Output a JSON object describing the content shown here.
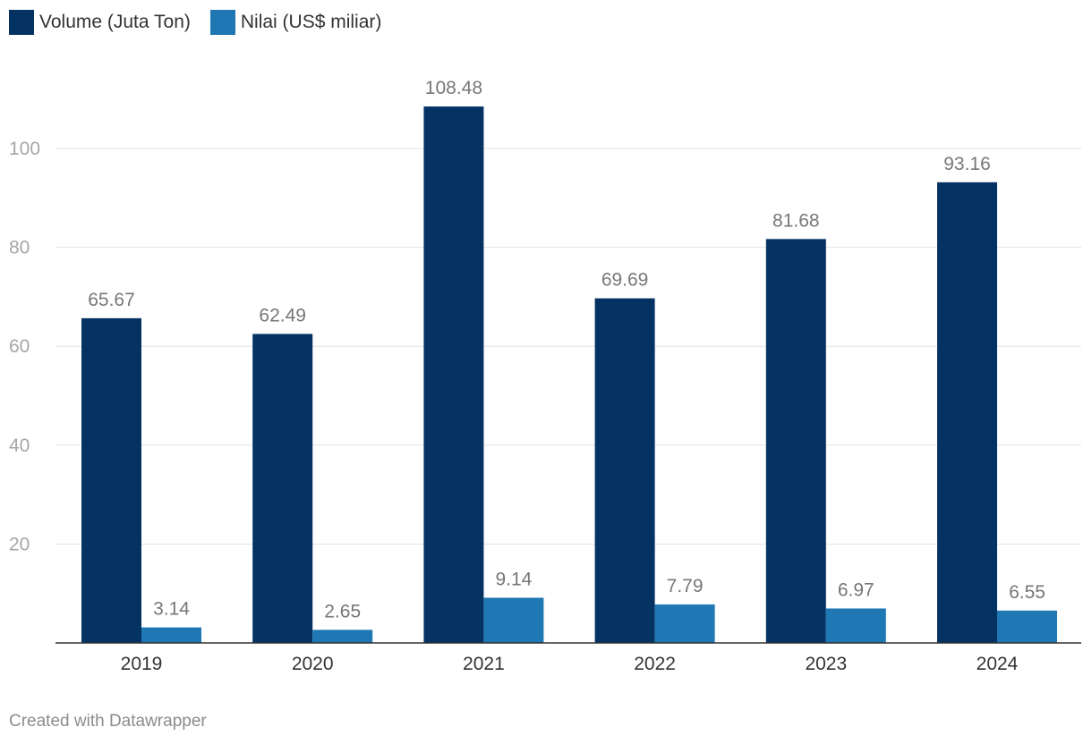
{
  "chart_data": {
    "type": "bar",
    "categories": [
      "2019",
      "2020",
      "2021",
      "2022",
      "2023",
      "2024"
    ],
    "series": [
      {
        "name": "Volume (Juta Ton)",
        "color": "#033263",
        "values": [
          65.67,
          62.49,
          108.48,
          69.69,
          81.68,
          93.16
        ],
        "labels": [
          "65.67",
          "62.49",
          "108.48",
          "69.69",
          "81.68",
          "93.16"
        ]
      },
      {
        "name": "Nilai (US$ miliar)",
        "color": "#1f77b4",
        "values": [
          3.14,
          2.65,
          9.14,
          7.79,
          6.97,
          6.55
        ],
        "labels": [
          "3.14",
          "2.65",
          "9.14",
          "7.79",
          "6.97",
          "6.55"
        ]
      }
    ],
    "yticks": [
      20,
      40,
      60,
      80,
      100
    ],
    "ytick_labels": [
      "20",
      "40",
      "60",
      "80",
      "100"
    ],
    "ylim": [
      0,
      110
    ],
    "grid": true,
    "legend": "top-left",
    "title": "",
    "xlabel": "",
    "ylabel": ""
  },
  "footer": {
    "credit": "Created with Datawrapper"
  }
}
